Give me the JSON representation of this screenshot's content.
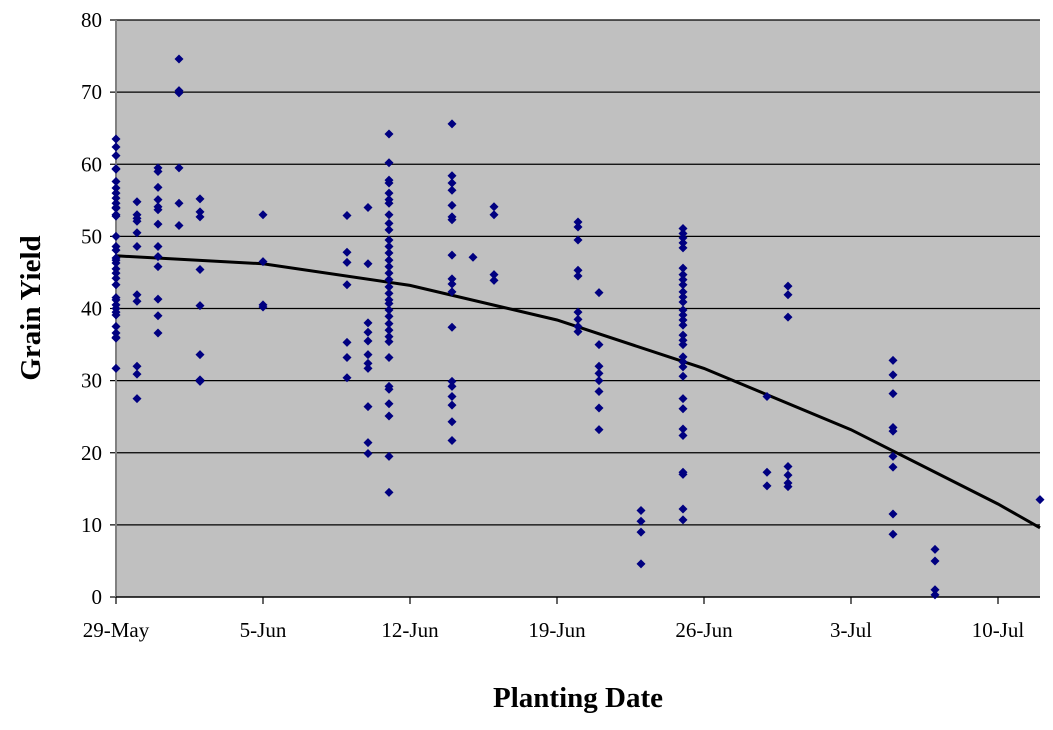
{
  "chart_data": {
    "type": "scatter",
    "title": "",
    "xlabel": "Planting Date",
    "ylabel": "Grain Yield",
    "xlim": [
      "29-May",
      "12-Jul"
    ],
    "ylim": [
      0,
      80
    ],
    "x_ticks": [
      "29-May",
      "5-Jun",
      "12-Jun",
      "19-Jun",
      "26-Jun",
      "3-Jul",
      "10-Jul"
    ],
    "y_ticks": [
      0,
      10,
      20,
      30,
      40,
      50,
      60,
      70,
      80
    ],
    "grid": "horizontal",
    "legend": "none",
    "colors": {
      "points": "#000080",
      "trendline": "#000000",
      "plot_background": "#c0c0c0"
    },
    "marker": "diamond",
    "series": [
      {
        "points": [
          {
            "date": "29-May",
            "yields": [
              63.5,
              62.4,
              61.2,
              59.4,
              59.3,
              57.6,
              56.7,
              56.0,
              55.3,
              54.6,
              54.0,
              53.9,
              53.0,
              52.8,
              50.0,
              48.6,
              48.1,
              47.0,
              46.7,
              46.3,
              45.5,
              44.9,
              44.2,
              43.3,
              41.5,
              41.2,
              40.5,
              40.0,
              39.5,
              39.1,
              37.5,
              36.6,
              36.0,
              35.9,
              31.7
            ]
          },
          {
            "date": "30-May",
            "yields": [
              54.8,
              53.0,
              52.5,
              52.1,
              50.5,
              48.6,
              41.9,
              41.0,
              32.0,
              30.9,
              27.5
            ]
          },
          {
            "date": "31-May",
            "yields": [
              59.5,
              59.0,
              56.8,
              55.1,
              54.1,
              53.7,
              51.7,
              48.6,
              47.2,
              45.8,
              41.3,
              39.0,
              36.6
            ]
          },
          {
            "date": "1-Jun",
            "yields": [
              74.6,
              70.2,
              69.9,
              59.5,
              54.6,
              51.5
            ]
          },
          {
            "date": "2-Jun",
            "yields": [
              55.2,
              53.4,
              52.7,
              45.4,
              40.4,
              33.6,
              30.1,
              29.9
            ]
          },
          {
            "date": "5-Jun",
            "yields": [
              53.0,
              46.5,
              40.5,
              40.2
            ]
          },
          {
            "date": "9-Jun",
            "yields": [
              52.9,
              47.8,
              46.4,
              43.3,
              35.3,
              33.2,
              30.4
            ]
          },
          {
            "date": "10-Jun",
            "yields": [
              54.0,
              46.2,
              38.0,
              36.7,
              35.5,
              33.6,
              32.4,
              31.7,
              26.4,
              21.4,
              19.9
            ]
          },
          {
            "date": "11-Jun",
            "yields": [
              64.2,
              60.2,
              57.8,
              57.4,
              56.0,
              55.1,
              54.6,
              53.0,
              51.8,
              50.9,
              49.5,
              48.6,
              47.7,
              46.7,
              45.8,
              44.9,
              44.0,
              43.0,
              42.1,
              41.2,
              40.7,
              39.8,
              38.9,
              37.9,
              37.0,
              36.1,
              35.4,
              33.2,
              29.2,
              28.8,
              26.8,
              25.1,
              19.5,
              14.5
            ]
          },
          {
            "date": "14-Jun",
            "yields": [
              65.6,
              58.4,
              57.4,
              56.4,
              54.3,
              52.7,
              52.3,
              47.4,
              44.1,
              43.4,
              42.3,
              37.4,
              29.9,
              29.2,
              27.8,
              26.6,
              24.3,
              21.7
            ]
          },
          {
            "date": "15-Jun",
            "yields": [
              47.1
            ]
          },
          {
            "date": "16-Jun",
            "yields": [
              54.1,
              53.0,
              44.7,
              43.9
            ]
          },
          {
            "date": "20-Jun",
            "yields": [
              52.0,
              51.3,
              49.5,
              45.3,
              44.5,
              39.5,
              38.5,
              37.5,
              36.8
            ]
          },
          {
            "date": "21-Jun",
            "yields": [
              42.2,
              35.0,
              32.0,
              31.0,
              30.0,
              28.5,
              26.2,
              23.2
            ]
          },
          {
            "date": "23-Jun",
            "yields": [
              12.0,
              10.5,
              9.0,
              4.6
            ]
          },
          {
            "date": "25-Jun",
            "yields": [
              51.1,
              50.4,
              49.8,
              49.1,
              48.4,
              45.6,
              44.7,
              44.0,
              43.3,
              42.3,
              41.6,
              40.9,
              39.8,
              39.1,
              38.4,
              37.7,
              36.3,
              35.6,
              35.0,
              33.3,
              32.6,
              31.9,
              30.6,
              27.5,
              26.1,
              23.3,
              22.4,
              17.3,
              17.0,
              12.2,
              10.7
            ]
          },
          {
            "date": "29-Jun",
            "yields": [
              27.8,
              17.3,
              15.4
            ]
          },
          {
            "date": "30-Jun",
            "yields": [
              43.1,
              41.9,
              38.8,
              18.1,
              16.9,
              15.8,
              15.3
            ]
          },
          {
            "date": "5-Jul",
            "yields": [
              32.8,
              30.8,
              28.2,
              23.5,
              23.0,
              19.5,
              18.0,
              11.5,
              8.7
            ]
          },
          {
            "date": "7-Jul",
            "yields": [
              6.6,
              5.0,
              1.0,
              0.3
            ]
          },
          {
            "date": "12-Jul",
            "yields": [
              13.5
            ]
          }
        ]
      }
    ],
    "trendline": {
      "type": "polynomial-2",
      "points": [
        {
          "date": "29-May",
          "yield": 47.3
        },
        {
          "date": "5-Jun",
          "yield": 46.2
        },
        {
          "date": "12-Jun",
          "yield": 43.2
        },
        {
          "date": "19-Jun",
          "yield": 38.4
        },
        {
          "date": "26-Jun",
          "yield": 31.7
        },
        {
          "date": "3-Jul",
          "yield": 23.2
        },
        {
          "date": "10-Jul",
          "yield": 12.9
        },
        {
          "date": "12-Jul",
          "yield": 9.6
        }
      ]
    }
  }
}
